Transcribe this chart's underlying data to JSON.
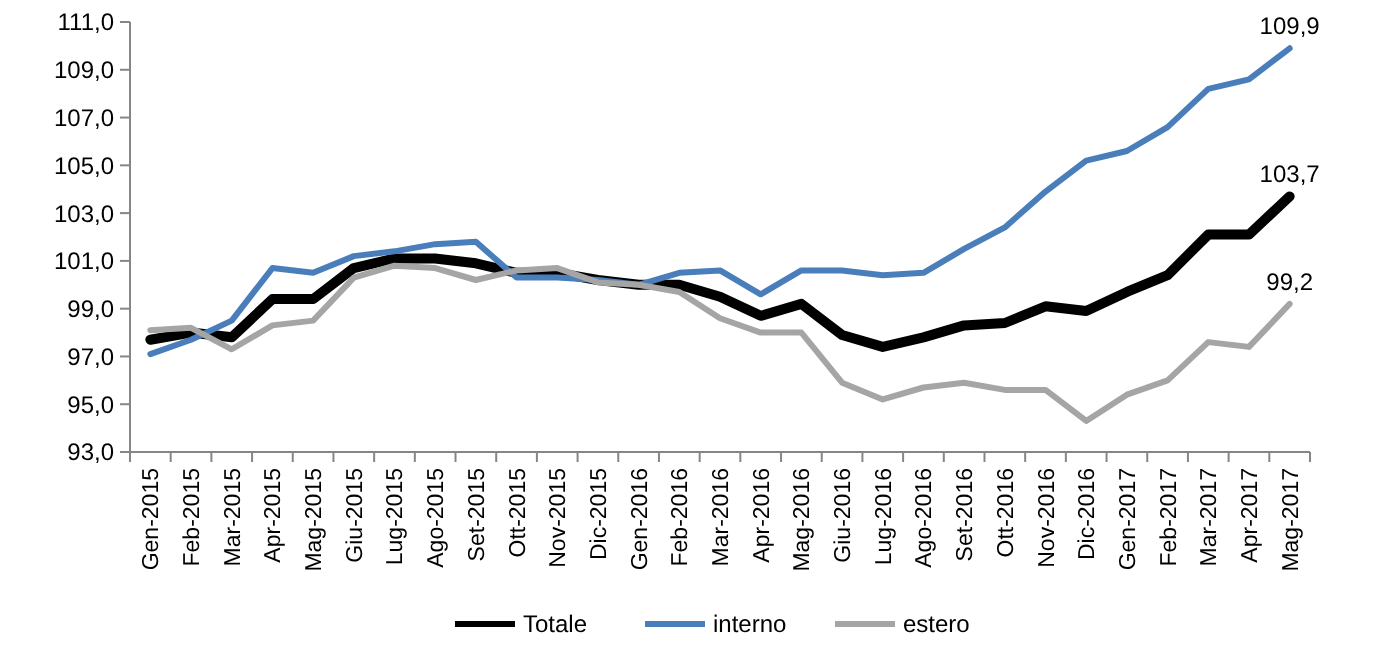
{
  "chart_data": {
    "type": "line",
    "categories": [
      "Gen-2015",
      "Feb-2015",
      "Mar-2015",
      "Apr-2015",
      "Mag-2015",
      "Giu-2015",
      "Lug-2015",
      "Ago-2015",
      "Set-2015",
      "Ott-2015",
      "Nov-2015",
      "Dic-2015",
      "Gen-2016",
      "Feb-2016",
      "Mar-2016",
      "Apr-2016",
      "Mag-2016",
      "Giu-2016",
      "Lug-2016",
      "Ago-2016",
      "Set-2016",
      "Ott-2016",
      "Nov-2016",
      "Dic-2016",
      "Gen-2017",
      "Feb-2017",
      "Mar-2017",
      "Apr-2017",
      "Mag-2017"
    ],
    "series": [
      {
        "name": "Totale",
        "color": "#000000",
        "values": [
          97.7,
          98.0,
          97.8,
          99.4,
          99.4,
          100.7,
          101.1,
          101.1,
          100.9,
          100.5,
          100.5,
          100.2,
          100.0,
          100.0,
          99.5,
          98.7,
          99.2,
          97.9,
          97.4,
          97.8,
          98.3,
          98.4,
          99.1,
          98.9,
          99.7,
          100.4,
          102.1,
          102.1,
          103.7
        ],
        "value_labels": [
          null,
          null,
          null,
          null,
          null,
          null,
          null,
          null,
          null,
          null,
          null,
          null,
          null,
          null,
          null,
          null,
          null,
          null,
          null,
          null,
          null,
          null,
          null,
          null,
          null,
          null,
          null,
          null,
          "103,7"
        ]
      },
      {
        "name": "interno",
        "color": "#4a7ebb",
        "values": [
          97.1,
          97.7,
          98.5,
          100.7,
          100.5,
          101.2,
          101.4,
          101.7,
          101.8,
          100.3,
          100.3,
          100.2,
          100.0,
          100.5,
          100.6,
          99.6,
          100.6,
          100.6,
          100.4,
          100.5,
          101.5,
          102.4,
          103.9,
          105.2,
          105.6,
          106.6,
          108.2,
          108.6,
          109.9
        ],
        "value_labels": [
          null,
          null,
          null,
          null,
          null,
          null,
          null,
          null,
          null,
          null,
          null,
          null,
          null,
          null,
          null,
          null,
          null,
          null,
          null,
          null,
          null,
          null,
          null,
          null,
          null,
          null,
          null,
          null,
          "109,9"
        ]
      },
      {
        "name": "estero",
        "color": "#a5a5a5",
        "values": [
          98.1,
          98.2,
          97.3,
          98.3,
          98.5,
          100.3,
          100.8,
          100.7,
          100.2,
          100.6,
          100.7,
          100.1,
          100.0,
          99.7,
          98.6,
          98.0,
          98.0,
          95.9,
          95.2,
          95.7,
          95.9,
          95.6,
          95.6,
          94.3,
          95.4,
          96.0,
          97.6,
          97.4,
          99.2
        ],
        "value_labels": [
          null,
          null,
          null,
          null,
          null,
          null,
          null,
          null,
          null,
          null,
          null,
          null,
          null,
          null,
          null,
          null,
          null,
          null,
          null,
          null,
          null,
          null,
          null,
          null,
          null,
          null,
          null,
          null,
          "99,2"
        ]
      }
    ],
    "ylim": [
      93,
      111
    ],
    "yticks": [
      {
        "value": 93,
        "label": "93,0"
      },
      {
        "value": 95,
        "label": "95,0"
      },
      {
        "value": 97,
        "label": "97,0"
      },
      {
        "value": 99,
        "label": "99,0"
      },
      {
        "value": 101,
        "label": "101,0"
      },
      {
        "value": 103,
        "label": "103,0"
      },
      {
        "value": 105,
        "label": "105,0"
      },
      {
        "value": 107,
        "label": "107,0"
      },
      {
        "value": 109,
        "label": "109,0"
      },
      {
        "value": 111,
        "label": "111,0"
      }
    ],
    "grid": false,
    "legend": "bottom",
    "marker": "none",
    "line_style": "solid"
  }
}
